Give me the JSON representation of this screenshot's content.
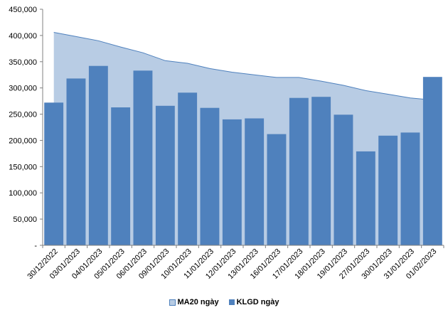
{
  "chart_data": {
    "type": "bar",
    "categories": [
      "30/12/2022",
      "03/01/2023",
      "04/01/2023",
      "05/01/2023",
      "06/01/2023",
      "09/01/2023",
      "10/01/2023",
      "11/01/2023",
      "12/01/2023",
      "13/01/2023",
      "16/01/2023",
      "17/01/2023",
      "18/01/2023",
      "19/01/2023",
      "27/01/2023",
      "30/01/2023",
      "31/01/2023",
      "01/02/2023"
    ],
    "series": [
      {
        "name": "MA20 ngày",
        "type": "area",
        "color": "#b8cce4",
        "line_color": "#4f81bd",
        "values": [
          406000,
          398000,
          390000,
          378000,
          367000,
          352000,
          347000,
          337000,
          330000,
          325000,
          320000,
          320000,
          313000,
          305000,
          295000,
          288000,
          281000,
          277000
        ]
      },
      {
        "name": "KLGD ngày",
        "type": "bar",
        "color": "#4f81bd",
        "values": [
          272000,
          318000,
          342000,
          263000,
          333000,
          266000,
          291000,
          262000,
          240000,
          242000,
          212000,
          281000,
          283000,
          249000,
          179000,
          209000,
          215000,
          321000
        ]
      }
    ],
    "y_ticks": [
      "-",
      "50,000",
      "100,000",
      "150,000",
      "200,000",
      "250,000",
      "300,000",
      "350,000",
      "400,000",
      "450,000"
    ],
    "ylim": [
      0,
      450000
    ],
    "grid": false,
    "legend_position": "bottom"
  },
  "legend": {
    "area_label": "MA20 ngày",
    "bar_label": "KLGD ngày"
  }
}
